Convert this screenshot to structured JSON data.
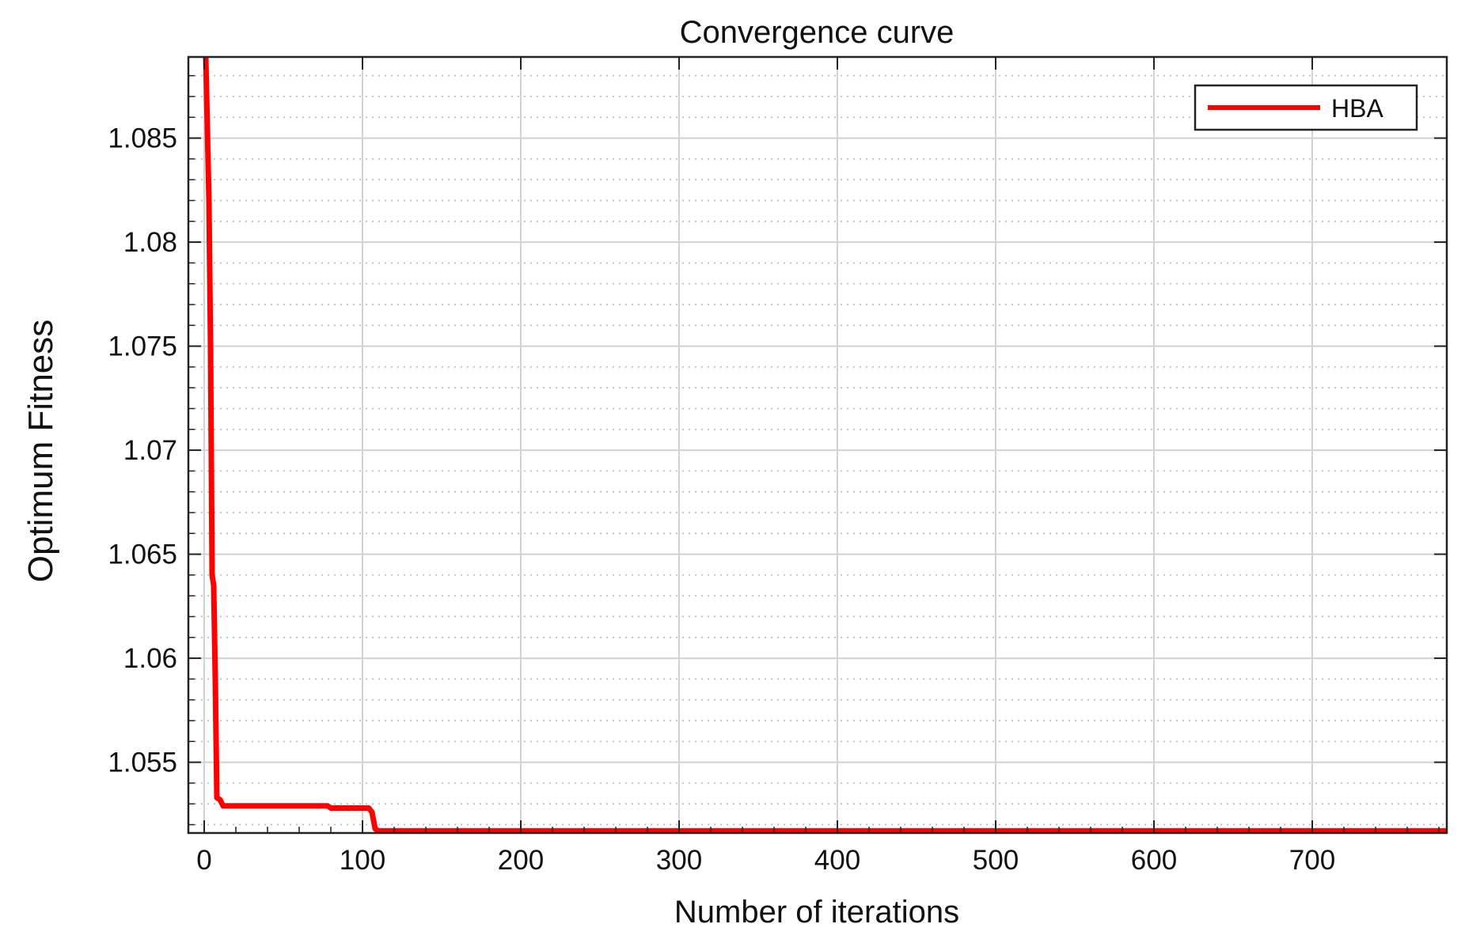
{
  "chart_data": {
    "type": "line",
    "title": "Convergence curve",
    "xlabel": "Number of iterations",
    "ylabel": "Optimum Fitness",
    "xlim": [
      -10,
      785
    ],
    "ylim": [
      1.0516,
      1.0889
    ],
    "xticks": [
      0,
      100,
      200,
      300,
      400,
      500,
      600,
      700
    ],
    "xtick_labels": [
      "0",
      "100",
      "200",
      "300",
      "400",
      "500",
      "600",
      "700"
    ],
    "yticks": [
      1.055,
      1.06,
      1.065,
      1.07,
      1.075,
      1.08,
      1.085
    ],
    "ytick_labels": [
      "1.055",
      "1.06",
      "1.065",
      "1.07",
      "1.075",
      "1.08",
      "1.085"
    ],
    "yminor_step": 0.001,
    "grid": true,
    "legend_position": "top-right",
    "series": [
      {
        "name": "HBA",
        "color": "#ff0000",
        "x": [
          1,
          3,
          4,
          5,
          6,
          7,
          8,
          10,
          12,
          20,
          40,
          78,
          80,
          104,
          106,
          108,
          110,
          120,
          200,
          400,
          600,
          785
        ],
        "y": [
          1.0889,
          1.082,
          1.075,
          1.064,
          1.0635,
          1.059,
          1.0533,
          1.0532,
          1.0529,
          1.0529,
          1.0529,
          1.0529,
          1.0528,
          1.0528,
          1.0526,
          1.0518,
          1.0517,
          1.0517,
          1.0517,
          1.0517,
          1.0517,
          1.0517
        ]
      }
    ]
  }
}
